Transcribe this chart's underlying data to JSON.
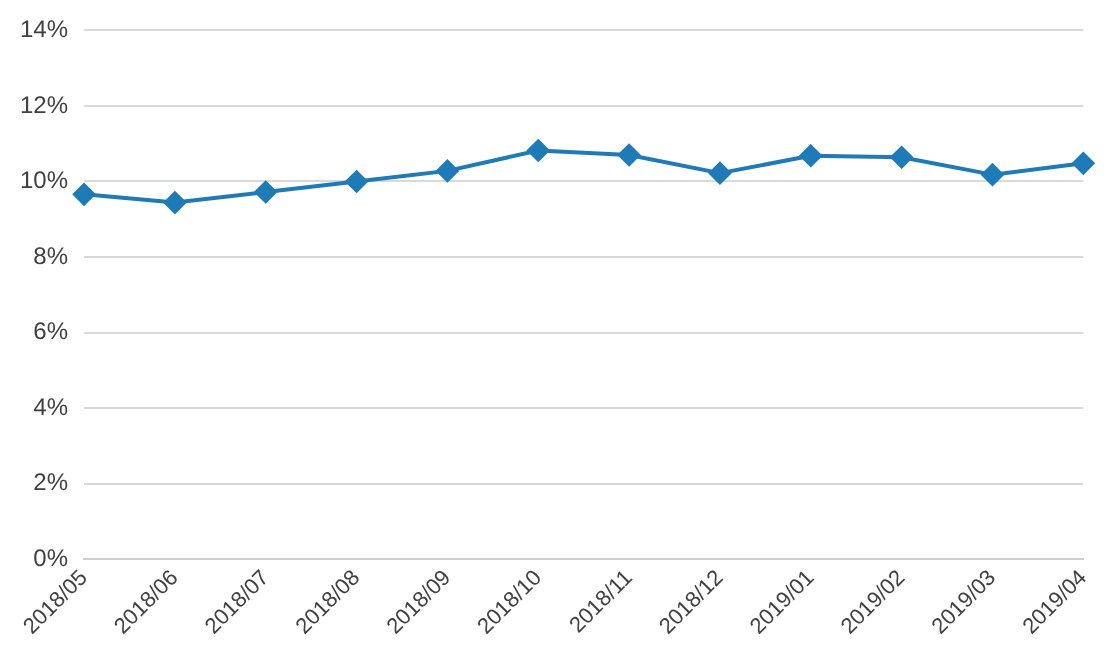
{
  "chart_data": {
    "type": "line",
    "categories": [
      "2018/05",
      "2018/06",
      "2018/07",
      "2018/08",
      "2018/09",
      "2018/10",
      "2018/11",
      "2018/12",
      "2019/01",
      "2019/02",
      "2019/03",
      "2019/04"
    ],
    "series": [
      {
        "color": "#1f7ab8",
        "values": [
          9.66,
          9.44,
          9.72,
          10.0,
          10.28,
          10.82,
          10.7,
          10.22,
          10.68,
          10.64,
          10.18,
          10.48
        ]
      }
    ],
    "ylim": [
      0,
      14
    ],
    "yticks": [
      {
        "value": 0,
        "label": "0%"
      },
      {
        "value": 2,
        "label": "2%"
      },
      {
        "value": 4,
        "label": "4%"
      },
      {
        "value": 6,
        "label": "6%"
      },
      {
        "value": 8,
        "label": "8%"
      },
      {
        "value": 10,
        "label": "10%"
      },
      {
        "value": 12,
        "label": "12%"
      },
      {
        "value": 14,
        "label": "14%"
      }
    ],
    "grid": "y",
    "legend": false,
    "marker": "diamond",
    "line_style": "solid"
  }
}
